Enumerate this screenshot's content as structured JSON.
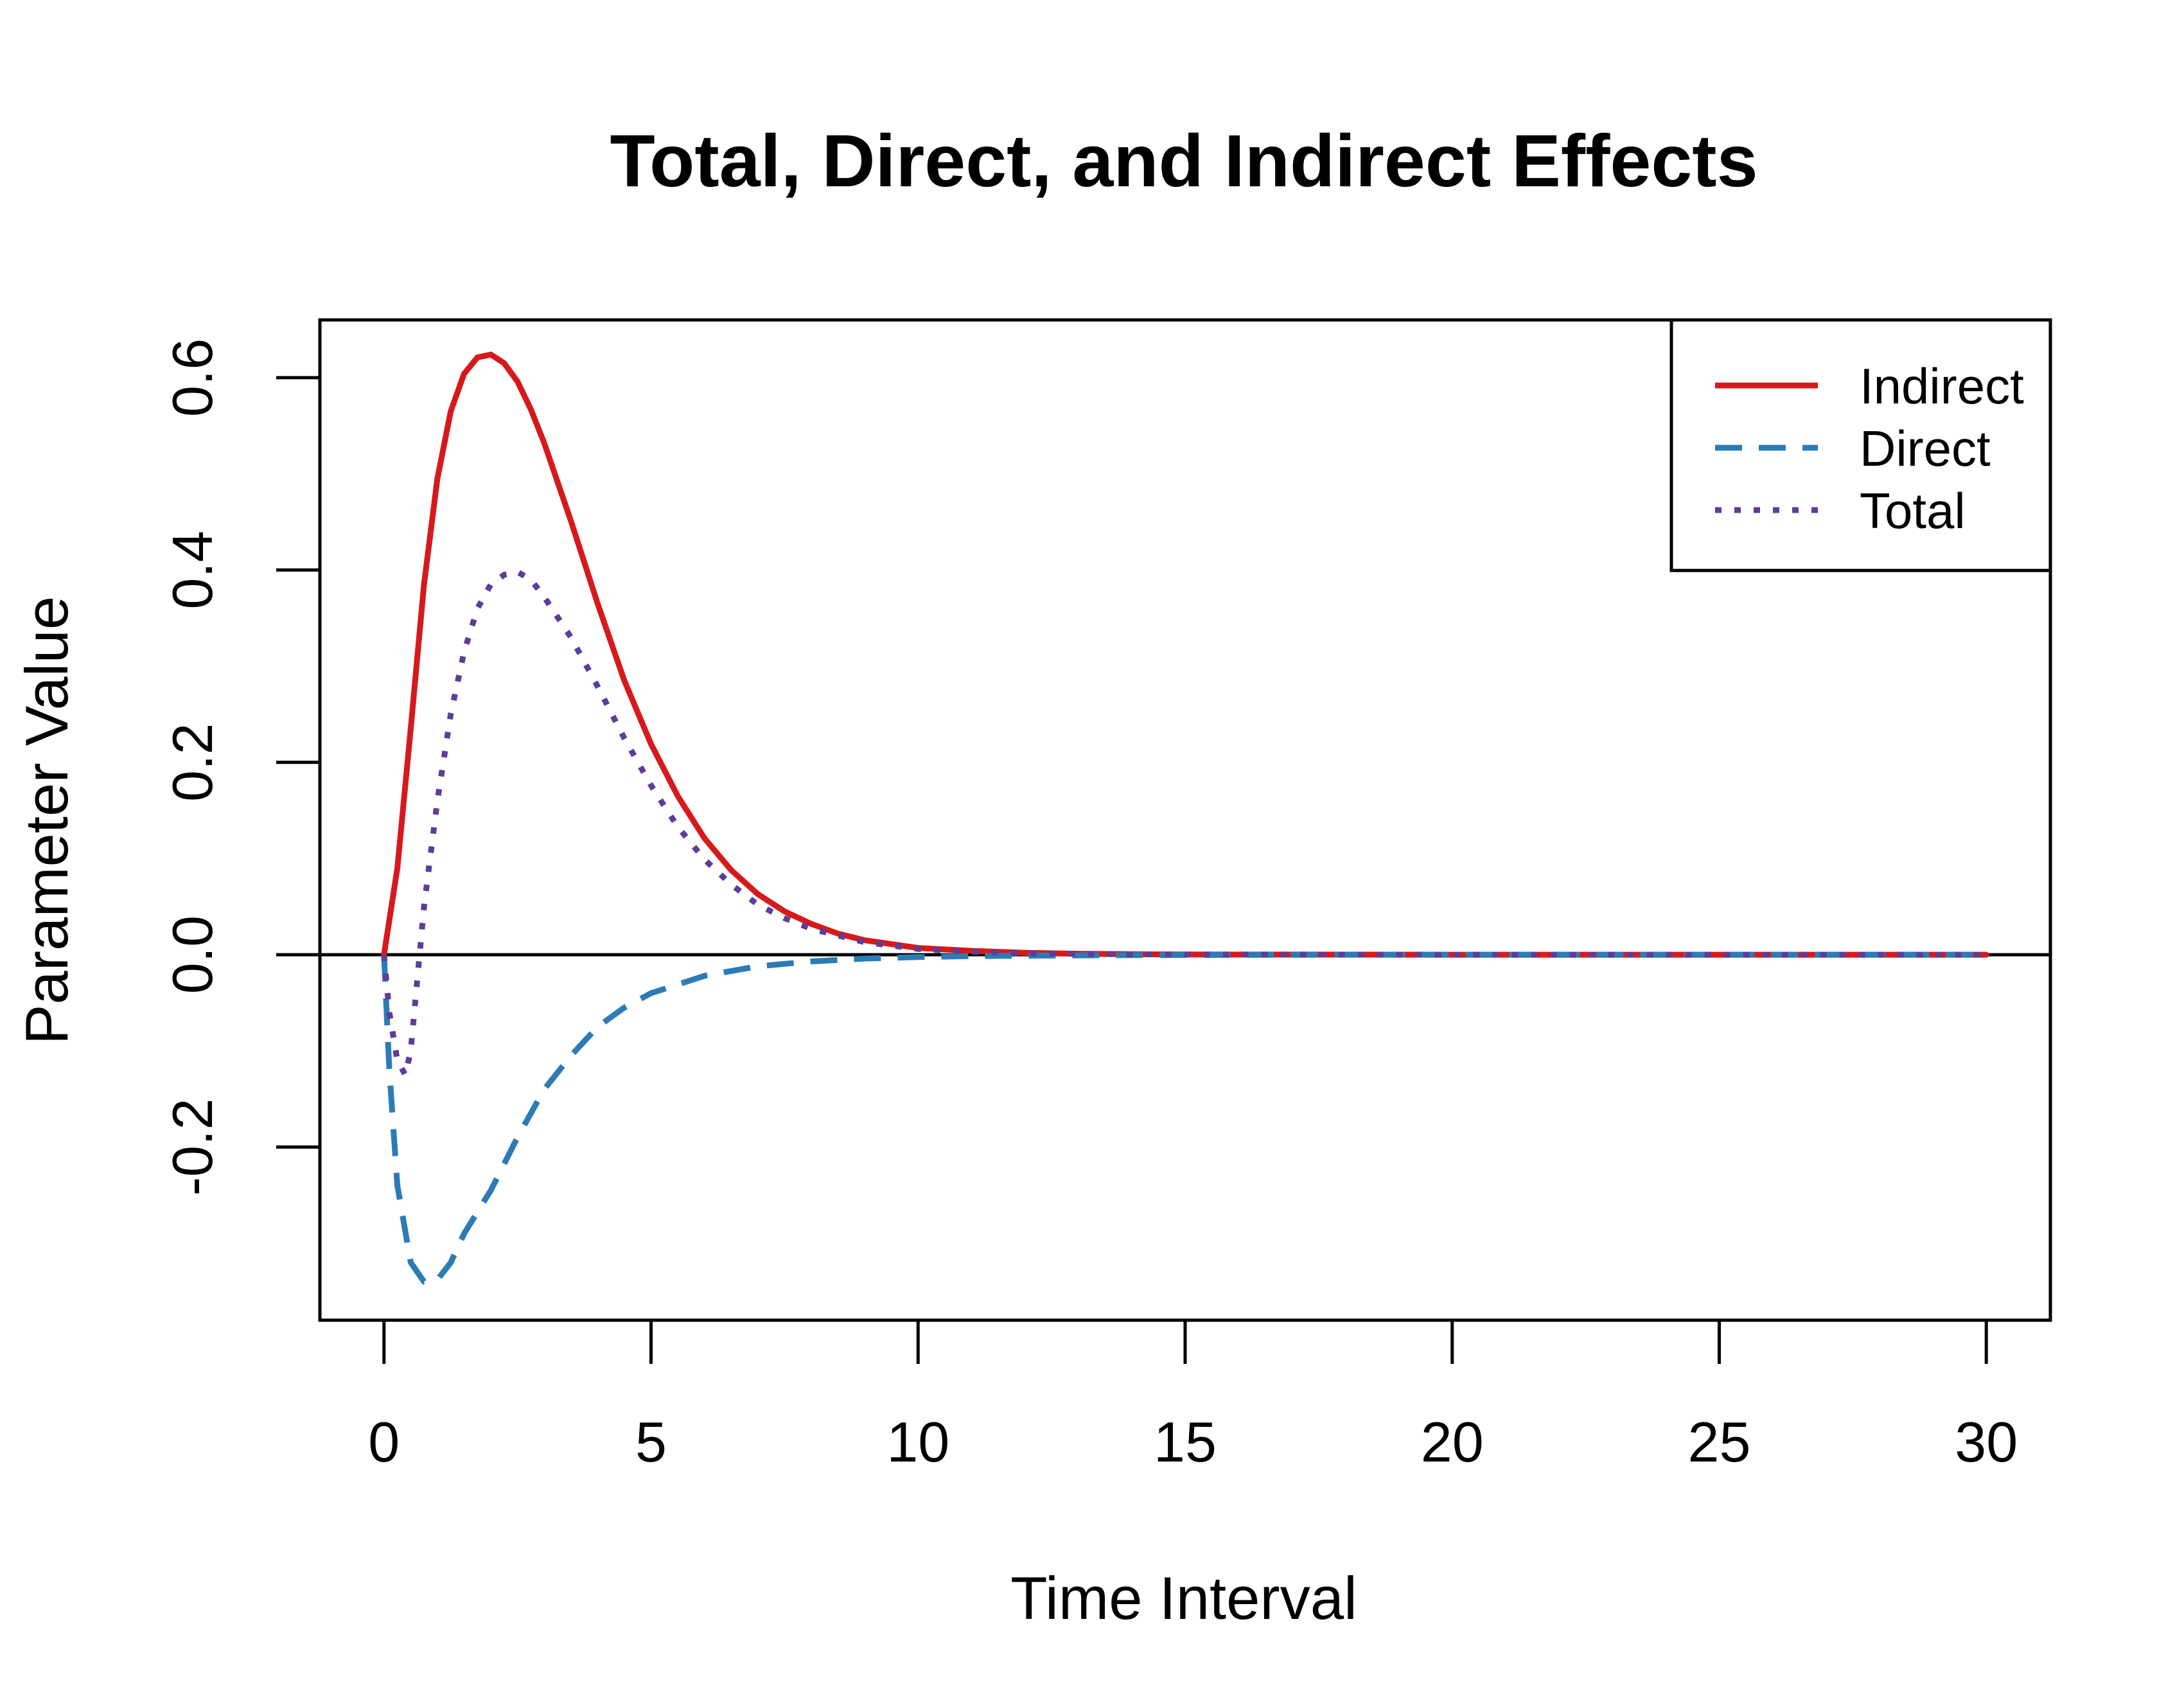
{
  "chart_data": {
    "type": "line",
    "title": "Total, Direct, and Indirect Effects",
    "xlabel": "Time Interval",
    "ylabel": "Parameter Value",
    "xlim": [
      -1.2,
      31.2
    ],
    "ylim": [
      -0.38,
      0.66
    ],
    "xticks": [
      0,
      5,
      10,
      15,
      20,
      25,
      30
    ],
    "xtick_labels": [
      "0",
      "5",
      "10",
      "15",
      "20",
      "25",
      "30"
    ],
    "yticks": [
      -0.2,
      0.0,
      0.2,
      0.4,
      0.6
    ],
    "ytick_labels": [
      "-0.2",
      "0.0",
      "0.2",
      "0.4",
      "0.6"
    ],
    "hline": 0,
    "grid": false,
    "legend": {
      "position": "top-right"
    },
    "series": [
      {
        "name": "Indirect",
        "color": "#d7191c",
        "style": "solid",
        "x": [
          0,
          0.25,
          0.5,
          0.75,
          1,
          1.25,
          1.5,
          1.75,
          2,
          2.25,
          2.5,
          2.75,
          3,
          3.5,
          4,
          4.5,
          5,
          5.5,
          6,
          6.5,
          7,
          7.5,
          8,
          8.5,
          9,
          9.5,
          10,
          11,
          12,
          13,
          14,
          15,
          17,
          20,
          25,
          30
        ],
        "y": [
          0,
          0.09,
          0.235,
          0.385,
          0.495,
          0.565,
          0.604,
          0.621,
          0.624,
          0.615,
          0.596,
          0.567,
          0.532,
          0.451,
          0.365,
          0.285,
          0.219,
          0.165,
          0.121,
          0.088,
          0.063,
          0.045,
          0.032,
          0.022,
          0.015,
          0.011,
          0.007,
          0.004,
          0.002,
          0.001,
          0.0005,
          0.0002,
          0.0001,
          0,
          0,
          0
        ]
      },
      {
        "name": "Direct",
        "color": "#2c7bb6",
        "style": "dashed",
        "x": [
          0,
          0.1,
          0.25,
          0.5,
          0.75,
          1,
          1.25,
          1.5,
          2,
          2.5,
          3,
          3.5,
          4,
          4.5,
          5,
          6,
          7,
          8,
          9,
          10,
          11,
          12,
          14,
          17,
          20,
          25,
          30
        ],
        "y": [
          0,
          -0.12,
          -0.24,
          -0.32,
          -0.34,
          -0.338,
          -0.32,
          -0.29,
          -0.245,
          -0.19,
          -0.14,
          -0.105,
          -0.075,
          -0.055,
          -0.04,
          -0.022,
          -0.012,
          -0.007,
          -0.004,
          -0.0025,
          -0.0015,
          -0.001,
          -0.0004,
          -0.0001,
          0,
          0,
          0
        ]
      },
      {
        "name": "Total",
        "color": "#5e3c99",
        "style": "dotted",
        "x": [
          0,
          0.1,
          0.25,
          0.4,
          0.5,
          0.75,
          1,
          1.25,
          1.5,
          1.75,
          2,
          2.25,
          2.5,
          2.75,
          3,
          3.5,
          4,
          4.5,
          5,
          5.5,
          6,
          6.5,
          7,
          7.5,
          8,
          9,
          10,
          11,
          12,
          14,
          17,
          20,
          25,
          30
        ],
        "y": [
          0,
          -0.06,
          -0.11,
          -0.125,
          -0.1,
          0.05,
          0.16,
          0.25,
          0.315,
          0.36,
          0.385,
          0.395,
          0.398,
          0.39,
          0.372,
          0.33,
          0.279,
          0.225,
          0.176,
          0.133,
          0.099,
          0.073,
          0.052,
          0.038,
          0.027,
          0.013,
          0.006,
          0.003,
          0.0015,
          0.0003,
          0.0001,
          0,
          0,
          0
        ]
      }
    ]
  }
}
